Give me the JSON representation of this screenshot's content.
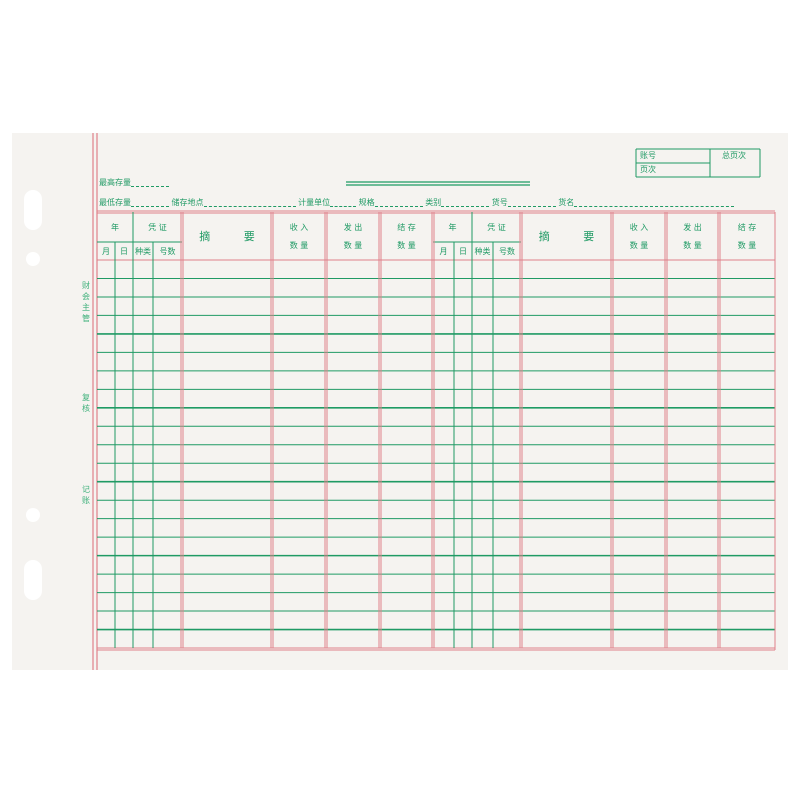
{
  "header": {
    "title_line": "",
    "max_stock": "最高存量",
    "min_stock": "最低存量",
    "storage_location": "储存地点",
    "unit": "计量单位",
    "spec": "规格",
    "category": "类别",
    "item_no": "货号",
    "item_name": "货名"
  },
  "account_box": {
    "account_no": "账号",
    "page": "页次",
    "total_pages": "总页次"
  },
  "side_labels": {
    "supervisor": "财会主管",
    "review": "复核",
    "bookkeeping": "记账"
  },
  "columns": {
    "year": "年",
    "voucher": "凭 证",
    "summary": "摘 要",
    "month": "月",
    "day": "日",
    "kind": "种类",
    "number": "号数",
    "income": "收 入",
    "expense": "发 出",
    "balance": "结 存",
    "quantity": "数 量"
  },
  "colors": {
    "green": "#1f9a64",
    "red": "#e0808a"
  }
}
